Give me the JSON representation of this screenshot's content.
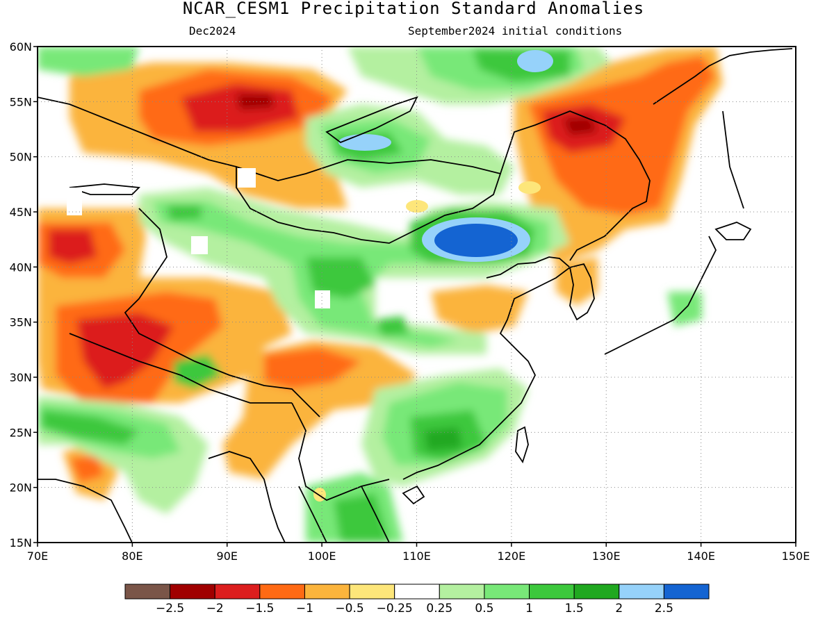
{
  "title": "NCAR_CESM1 Precipitation Standard Anomalies",
  "subtitle_left": "Dec2024",
  "subtitle_right": "September2024 initial conditions",
  "map": {
    "lon_range": [
      70,
      150
    ],
    "lat_range": [
      15,
      60
    ],
    "lon_ticks": [
      "70E",
      "80E",
      "90E",
      "100E",
      "110E",
      "120E",
      "130E",
      "140E",
      "150E"
    ],
    "lat_ticks": [
      "15N",
      "20N",
      "25N",
      "30N",
      "35N",
      "40N",
      "45N",
      "50N",
      "55N",
      "60N"
    ],
    "gridlines": "dotted"
  },
  "legend": {
    "colors": [
      "#7a5548",
      "#a00000",
      "#dc1e1e",
      "#ff6a14",
      "#fbb43c",
      "#fde67a",
      "#ffffff",
      "#b4f0a0",
      "#78e878",
      "#3cc83c",
      "#20a820",
      "#96d2fa",
      "#1464d2"
    ],
    "labels": [
      "−2.5",
      "−2",
      "−1.5",
      "−1",
      "−0.5",
      "−0.25",
      "0.25",
      "0.5",
      "1",
      "1.5",
      "2",
      "2.5"
    ]
  },
  "features": [
    {
      "name": "strong-positive-core",
      "color": "#1464d2",
      "lon": 115,
      "lat": 42
    },
    {
      "name": "positive-core-north",
      "color": "#96d2fa",
      "lon": 121,
      "lat": 58
    },
    {
      "name": "positive-core-baikal",
      "color": "#96d2fa",
      "lon": 104,
      "lat": 51
    },
    {
      "name": "negative-core-northeast",
      "color": "#a00000",
      "lon": 127,
      "lat": 53
    },
    {
      "name": "negative-core-altai",
      "color": "#a00000",
      "lon": 93,
      "lat": 55
    },
    {
      "name": "negative-core-tibet",
      "color": "#dc1e1e",
      "lon": 81,
      "lat": 34
    }
  ]
}
